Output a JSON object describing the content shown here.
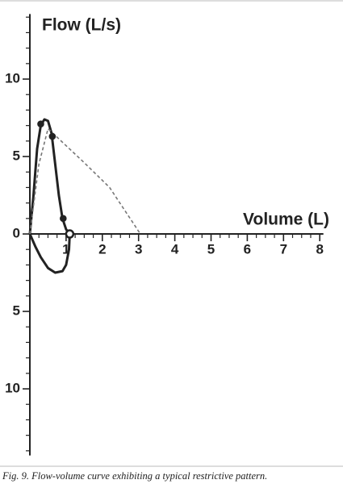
{
  "chart_data": {
    "type": "line",
    "y_title": "Flow (L/s)",
    "x_title": "Volume (L)",
    "caption": "Fig. 9. Flow-volume curve exhibiting a typical restrictive pattern.",
    "xlim": [
      0,
      8.1
    ],
    "ylim": [
      -14.3,
      14.2
    ],
    "xticks": [
      1,
      2,
      3,
      4,
      5,
      6,
      7,
      8
    ],
    "xminorticks": [
      0.25,
      0.5,
      0.75,
      1.25,
      1.5,
      1.75,
      2.25,
      2.5,
      2.75,
      3.25,
      3.5,
      3.75,
      4.25,
      4.5,
      4.75,
      5.25,
      5.5,
      5.75,
      6.25,
      6.5,
      6.75,
      7.25,
      7.5,
      7.75
    ],
    "yticks": [
      10,
      5,
      0,
      {
        "value": -5,
        "label": "5"
      },
      {
        "value": -10,
        "label": "10"
      }
    ],
    "yminorticks": [
      14,
      13,
      12,
      11,
      9,
      8,
      7,
      6,
      4,
      3,
      2,
      1,
      -1,
      -2,
      -3,
      -4,
      -6,
      -7,
      -8,
      -9,
      -11,
      -12,
      -13,
      -14
    ],
    "series": [
      {
        "color": "#222222",
        "style": "solid",
        "width": 3,
        "x": [
          0,
          0.1,
          0.2,
          0.3,
          0.4,
          0.5,
          0.6,
          0.7,
          0.8,
          0.9,
          1.0,
          1.1,
          1.08,
          1.0,
          0.9,
          0.7,
          0.5,
          0.3,
          0.15,
          0
        ],
        "values": [
          0,
          2.5,
          5.5,
          7.0,
          7.4,
          7.3,
          6.5,
          4.5,
          2.5,
          1.0,
          0.3,
          0,
          -1.0,
          -2.0,
          -2.4,
          -2.5,
          -2.2,
          -1.5,
          -0.8,
          0
        ]
      },
      {
        "color": "#777777",
        "style": "dashed",
        "width": 1.6,
        "x": [
          0,
          0.25,
          0.5,
          1.5,
          2.2,
          3.05
        ],
        "values": [
          0,
          4.5,
          6.8,
          4.6,
          3.0,
          0
        ]
      },
      {
        "color": "#222222",
        "style": "markers",
        "x": [
          0.3,
          0.62,
          0.92,
          1.1
        ],
        "values": [
          7.1,
          6.3,
          1.0,
          0
        ]
      }
    ]
  }
}
